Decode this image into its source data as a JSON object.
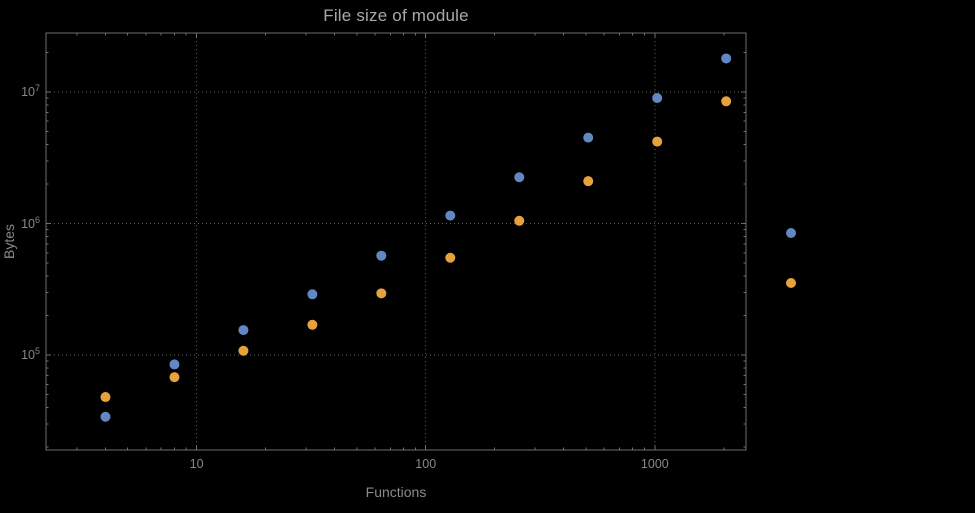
{
  "chart_data": {
    "type": "scatter",
    "title": "File size of module",
    "xlabel": "Functions",
    "ylabel": "Bytes",
    "x_scale": "log",
    "y_scale": "log",
    "grid": "dotted",
    "grid_color": "#5f5f5f",
    "frame_color": "#6e6e6e",
    "x": [
      4,
      8,
      16,
      32,
      64,
      128,
      256,
      512,
      1024,
      2048
    ],
    "series": [
      {
        "name": "blue",
        "color": "#6288c4",
        "values": [
          34000,
          85000,
          155000,
          290000,
          570000,
          1150000,
          2250000,
          4500000,
          9000000,
          18000000
        ]
      },
      {
        "name": "orange",
        "color": "#e7a23b",
        "values": [
          48000,
          68000,
          108000,
          170000,
          295000,
          550000,
          1050000,
          2100000,
          4200000,
          8500000
        ]
      }
    ],
    "xlim": [
      2.2,
      2500
    ],
    "ylim": [
      19000,
      28100000
    ],
    "x_ticks": {
      "major": [
        10,
        100,
        1000
      ],
      "labels": [
        "10",
        "100",
        "1000"
      ]
    },
    "y_ticks": {
      "major": [
        100000,
        1000000,
        10000000
      ],
      "exponents": [
        5,
        6,
        7
      ]
    },
    "legend_position": "right-of-plot",
    "legend_markers": [
      {
        "series": "blue"
      },
      {
        "series": "orange"
      }
    ]
  },
  "colors": {
    "background": "#000000",
    "title_text": "#a9a9a9",
    "axis_text": "#8a8a8a",
    "series_blue": "#6288c4",
    "series_orange": "#e7a23b"
  }
}
